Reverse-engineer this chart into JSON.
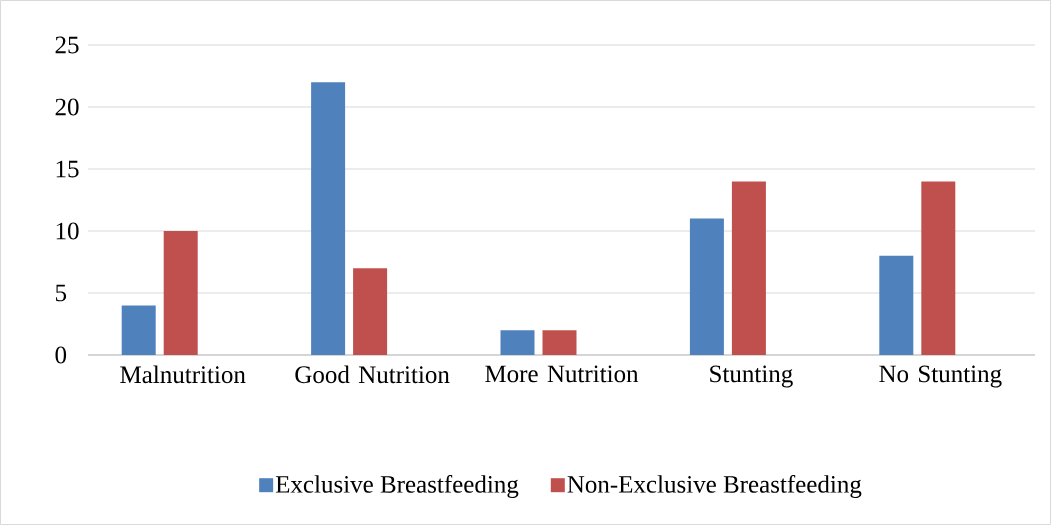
{
  "chart_data": {
    "type": "bar",
    "categories": [
      "Malnutrition",
      "Good Nutrition",
      "More Nutrition",
      "Stunting",
      "No Stunting"
    ],
    "series": [
      {
        "name": "Exclusive Breastfeeding",
        "color": "#4f81bd",
        "values": [
          4,
          22,
          2,
          11,
          8
        ]
      },
      {
        "name": "Non-Exclusive Breastfeeding",
        "color": "#c0504d",
        "values": [
          10,
          7,
          2,
          14,
          14
        ]
      }
    ],
    "ylim": [
      0,
      25
    ],
    "yticks": [
      0,
      5,
      10,
      15,
      20,
      25
    ],
    "grid": "y",
    "legend": "bottom"
  }
}
